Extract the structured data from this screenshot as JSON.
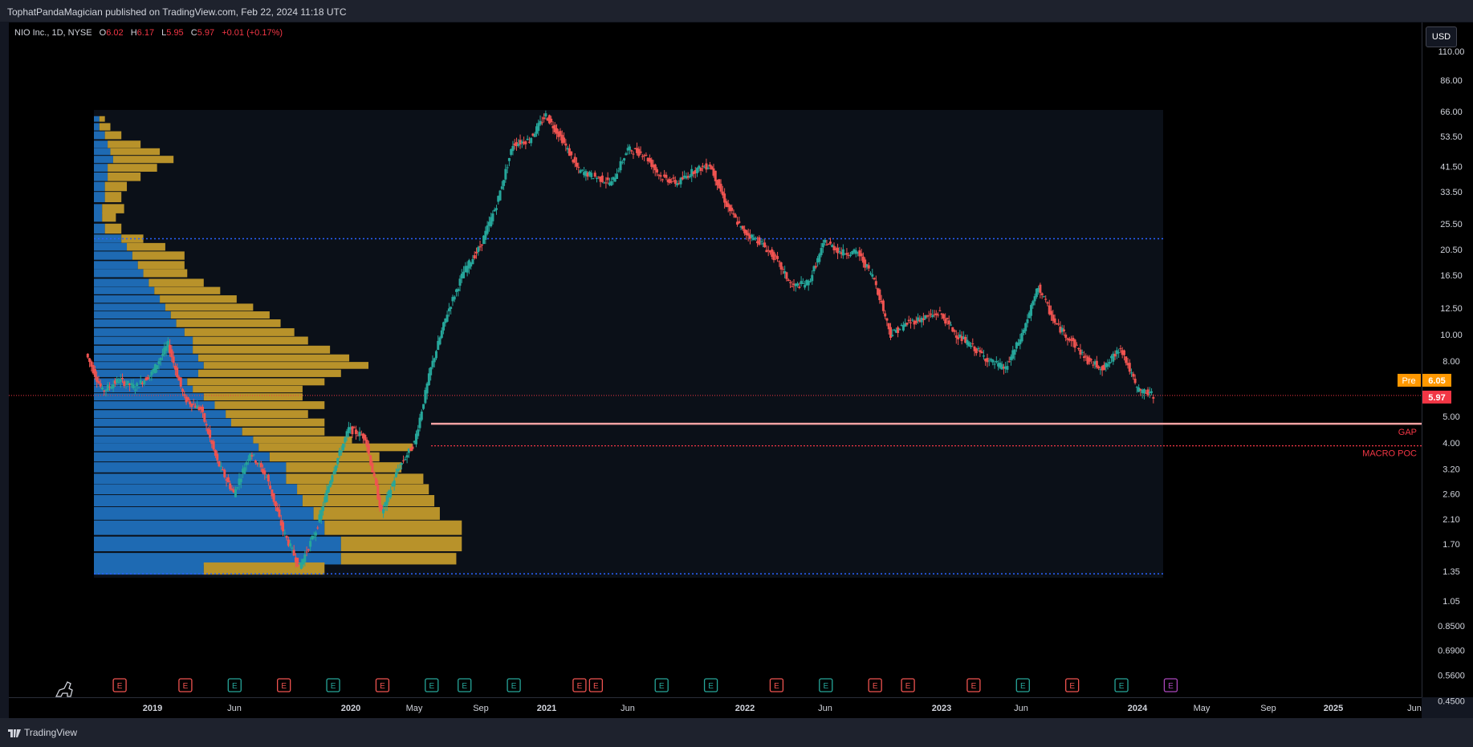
{
  "header": {
    "published_line": "TophatPandaMagician published on TradingView.com, Feb 22, 2024 11:18 UTC"
  },
  "legend": {
    "symbol": "NIO Inc., 1D, NYSE",
    "open_label": "O",
    "open": "6.02",
    "high_label": "H",
    "high": "6.17",
    "low_label": "L",
    "low": "5.95",
    "close_label": "C",
    "close": "5.97",
    "change": "+0.01 (+0.17%)"
  },
  "currency_button": "USD",
  "footer": {
    "brand": "TradingView"
  },
  "price_tags": {
    "pre_label": "Pre",
    "pre_value": "6.05",
    "last_value": "5.97"
  },
  "annotations": {
    "gap_label": "GAP",
    "poc_label": "MACRO POC"
  },
  "colors": {
    "up": "#26a69a",
    "down": "#ef5350",
    "profile_blue": "#1e6ab3",
    "profile_gold": "#b8922a",
    "level_line": "#2962ff",
    "gap_line": "#f7a3a3",
    "poc_line": "#f23645",
    "pre_tag": "#ff9800",
    "last_tag": "#f23645"
  },
  "chart_data": {
    "type": "candlestick",
    "symbol": "NIO",
    "interval": "1D",
    "y_scale": "log",
    "y_ticks": [
      "110.00",
      "86.00",
      "66.00",
      "53.50",
      "41.50",
      "33.50",
      "25.50",
      "20.50",
      "16.50",
      "12.50",
      "10.00",
      "8.00",
      "5.00",
      "4.00",
      "3.20",
      "2.60",
      "2.10",
      "1.70",
      "1.35",
      "1.05",
      "0.8500",
      "0.6900",
      "0.5600",
      "0.4500"
    ],
    "x_ticks": [
      "2019",
      "Jun",
      "2020",
      "May",
      "Sep",
      "2021",
      "Jun",
      "2022",
      "Jun",
      "2023",
      "Jun",
      "2024",
      "May",
      "Sep",
      "2025",
      "Jun"
    ],
    "price_path": [
      {
        "t": "2018-09",
        "p": 8.5
      },
      {
        "t": "2018-10",
        "p": 6.2
      },
      {
        "t": "2018-11",
        "p": 6.8
      },
      {
        "t": "2018-12",
        "p": 6.4
      },
      {
        "t": "2019-01",
        "p": 7.2
      },
      {
        "t": "2019-02",
        "p": 9.2
      },
      {
        "t": "2019-03",
        "p": 5.8
      },
      {
        "t": "2019-04",
        "p": 5.3
      },
      {
        "t": "2019-05",
        "p": 3.4
      },
      {
        "t": "2019-06",
        "p": 2.6
      },
      {
        "t": "2019-07",
        "p": 3.7
      },
      {
        "t": "2019-08",
        "p": 3.0
      },
      {
        "t": "2019-09",
        "p": 1.9
      },
      {
        "t": "2019-10",
        "p": 1.4
      },
      {
        "t": "2019-11",
        "p": 1.9
      },
      {
        "t": "2019-12",
        "p": 3.1
      },
      {
        "t": "2020-01",
        "p": 4.5
      },
      {
        "t": "2020-02",
        "p": 4.2
      },
      {
        "t": "2020-03",
        "p": 2.2
      },
      {
        "t": "2020-04",
        "p": 3.2
      },
      {
        "t": "2020-05",
        "p": 4.0
      },
      {
        "t": "2020-06",
        "p": 7.5
      },
      {
        "t": "2020-07",
        "p": 12.0
      },
      {
        "t": "2020-08",
        "p": 17.0
      },
      {
        "t": "2020-09",
        "p": 21.0
      },
      {
        "t": "2020-10",
        "p": 30.0
      },
      {
        "t": "2020-11",
        "p": 50.0
      },
      {
        "t": "2020-12",
        "p": 52.0
      },
      {
        "t": "2021-01",
        "p": 64.0
      },
      {
        "t": "2021-02",
        "p": 52.0
      },
      {
        "t": "2021-03",
        "p": 40.0
      },
      {
        "t": "2021-04",
        "p": 38.0
      },
      {
        "t": "2021-05",
        "p": 36.0
      },
      {
        "t": "2021-06",
        "p": 48.0
      },
      {
        "t": "2021-07",
        "p": 46.0
      },
      {
        "t": "2021-08",
        "p": 38.0
      },
      {
        "t": "2021-09",
        "p": 36.0
      },
      {
        "t": "2021-10",
        "p": 40.0
      },
      {
        "t": "2021-11",
        "p": 42.0
      },
      {
        "t": "2021-12",
        "p": 30.0
      },
      {
        "t": "2022-01",
        "p": 24.0
      },
      {
        "t": "2022-02",
        "p": 22.0
      },
      {
        "t": "2022-03",
        "p": 19.0
      },
      {
        "t": "2022-04",
        "p": 15.0
      },
      {
        "t": "2022-05",
        "p": 15.5
      },
      {
        "t": "2022-06",
        "p": 22.0
      },
      {
        "t": "2022-07",
        "p": 20.0
      },
      {
        "t": "2022-08",
        "p": 20.0
      },
      {
        "t": "2022-09",
        "p": 16.0
      },
      {
        "t": "2022-10",
        "p": 10.0
      },
      {
        "t": "2022-11",
        "p": 11.0
      },
      {
        "t": "2022-12",
        "p": 11.5
      },
      {
        "t": "2023-01",
        "p": 12.0
      },
      {
        "t": "2023-02",
        "p": 10.0
      },
      {
        "t": "2023-03",
        "p": 9.0
      },
      {
        "t": "2023-04",
        "p": 8.0
      },
      {
        "t": "2023-05",
        "p": 7.5
      },
      {
        "t": "2023-06",
        "p": 10.0
      },
      {
        "t": "2023-07",
        "p": 15.0
      },
      {
        "t": "2023-08",
        "p": 11.0
      },
      {
        "t": "2023-09",
        "p": 9.5
      },
      {
        "t": "2023-10",
        "p": 8.0
      },
      {
        "t": "2023-11",
        "p": 7.5
      },
      {
        "t": "2023-12",
        "p": 9.0
      },
      {
        "t": "2024-01",
        "p": 6.3
      },
      {
        "t": "2024-02",
        "p": 5.97
      }
    ],
    "levels": [
      {
        "name": "upper profile boundary",
        "price": 22.5
      },
      {
        "name": "GAP",
        "price": 4.7
      },
      {
        "name": "MACRO POC",
        "price": 3.9
      },
      {
        "name": "lower profile boundary",
        "price": 1.32
      }
    ],
    "volume_profile": {
      "rows": [
        {
          "price": 62,
          "down": 0.02,
          "up": 0.02
        },
        {
          "price": 58,
          "down": 0.02,
          "up": 0.04
        },
        {
          "price": 54,
          "down": 0.04,
          "up": 0.06
        },
        {
          "price": 50,
          "down": 0.05,
          "up": 0.12
        },
        {
          "price": 47,
          "down": 0.06,
          "up": 0.18
        },
        {
          "price": 44,
          "down": 0.07,
          "up": 0.22
        },
        {
          "price": 41,
          "down": 0.05,
          "up": 0.18
        },
        {
          "price": 38,
          "down": 0.05,
          "up": 0.12
        },
        {
          "price": 35,
          "down": 0.04,
          "up": 0.08
        },
        {
          "price": 32,
          "down": 0.04,
          "up": 0.06
        },
        {
          "price": 29,
          "down": 0.03,
          "up": 0.08
        },
        {
          "price": 27,
          "down": 0.03,
          "up": 0.05
        },
        {
          "price": 24.5,
          "down": 0.04,
          "up": 0.06
        },
        {
          "price": 22.5,
          "down": 0.1,
          "up": 0.08
        },
        {
          "price": 21,
          "down": 0.12,
          "up": 0.14
        },
        {
          "price": 19.5,
          "down": 0.14,
          "up": 0.19
        },
        {
          "price": 18,
          "down": 0.16,
          "up": 0.17
        },
        {
          "price": 16.8,
          "down": 0.18,
          "up": 0.16
        },
        {
          "price": 15.5,
          "down": 0.2,
          "up": 0.2
        },
        {
          "price": 14.5,
          "down": 0.22,
          "up": 0.24
        },
        {
          "price": 13.5,
          "down": 0.24,
          "up": 0.28
        },
        {
          "price": 12.6,
          "down": 0.26,
          "up": 0.32
        },
        {
          "price": 11.8,
          "down": 0.28,
          "up": 0.36
        },
        {
          "price": 11,
          "down": 0.3,
          "up": 0.38
        },
        {
          "price": 10.2,
          "down": 0.33,
          "up": 0.4
        },
        {
          "price": 9.5,
          "down": 0.36,
          "up": 0.42
        },
        {
          "price": 8.8,
          "down": 0.36,
          "up": 0.5
        },
        {
          "price": 8.2,
          "down": 0.38,
          "up": 0.55
        },
        {
          "price": 7.7,
          "down": 0.4,
          "up": 0.6
        },
        {
          "price": 7.2,
          "down": 0.38,
          "up": 0.52
        },
        {
          "price": 6.7,
          "down": 0.34,
          "up": 0.5
        },
        {
          "price": 6.3,
          "down": 0.36,
          "up": 0.4
        },
        {
          "price": 5.9,
          "down": 0.4,
          "up": 0.36
        },
        {
          "price": 5.5,
          "down": 0.44,
          "up": 0.4
        },
        {
          "price": 5.1,
          "down": 0.48,
          "up": 0.3
        },
        {
          "price": 4.75,
          "down": 0.5,
          "up": 0.34
        },
        {
          "price": 4.4,
          "down": 0.54,
          "up": 0.3
        },
        {
          "price": 4.1,
          "down": 0.58,
          "up": 0.36
        },
        {
          "price": 3.85,
          "down": 0.6,
          "up": 0.56
        },
        {
          "price": 3.55,
          "down": 0.64,
          "up": 0.4
        },
        {
          "price": 3.25,
          "down": 0.7,
          "up": 0.42
        },
        {
          "price": 2.95,
          "down": 0.7,
          "up": 0.5
        },
        {
          "price": 2.7,
          "down": 0.74,
          "up": 0.48
        },
        {
          "price": 2.45,
          "down": 0.76,
          "up": 0.48
        },
        {
          "price": 2.2,
          "down": 0.8,
          "up": 0.46
        },
        {
          "price": 1.95,
          "down": 0.84,
          "up": 0.5
        },
        {
          "price": 1.7,
          "down": 0.9,
          "up": 0.44
        },
        {
          "price": 1.5,
          "down": 0.9,
          "up": 0.42
        },
        {
          "price": 1.38,
          "down": 0.4,
          "up": 0.44
        }
      ]
    },
    "earnings_markers": [
      {
        "x": "2018-11",
        "type": "E",
        "status": "miss"
      },
      {
        "x": "2019-03",
        "type": "E",
        "status": "miss"
      },
      {
        "x": "2019-06",
        "type": "E",
        "status": "beat"
      },
      {
        "x": "2019-09",
        "type": "E",
        "status": "miss"
      },
      {
        "x": "2019-12",
        "type": "E",
        "status": "beat"
      },
      {
        "x": "2020-03",
        "type": "E",
        "status": "miss"
      },
      {
        "x": "2020-06",
        "type": "E",
        "status": "beat"
      },
      {
        "x": "2020-08",
        "type": "E",
        "status": "beat"
      },
      {
        "x": "2020-11",
        "type": "E",
        "status": "beat"
      },
      {
        "x": "2021-03",
        "type": "E",
        "status": "miss"
      },
      {
        "x": "2021-04",
        "type": "E",
        "status": "miss"
      },
      {
        "x": "2021-08",
        "type": "E",
        "status": "beat"
      },
      {
        "x": "2021-11",
        "type": "E",
        "status": "beat"
      },
      {
        "x": "2022-03",
        "type": "E",
        "status": "miss"
      },
      {
        "x": "2022-06",
        "type": "E",
        "status": "beat"
      },
      {
        "x": "2022-09",
        "type": "E",
        "status": "miss"
      },
      {
        "x": "2022-11",
        "type": "E",
        "status": "miss"
      },
      {
        "x": "2023-03",
        "type": "E",
        "status": "miss"
      },
      {
        "x": "2023-06",
        "type": "E",
        "status": "beat"
      },
      {
        "x": "2023-09",
        "type": "E",
        "status": "miss"
      },
      {
        "x": "2023-12",
        "type": "E",
        "status": "beat"
      },
      {
        "x": "2024-03",
        "type": "E",
        "status": "upcoming"
      }
    ]
  }
}
